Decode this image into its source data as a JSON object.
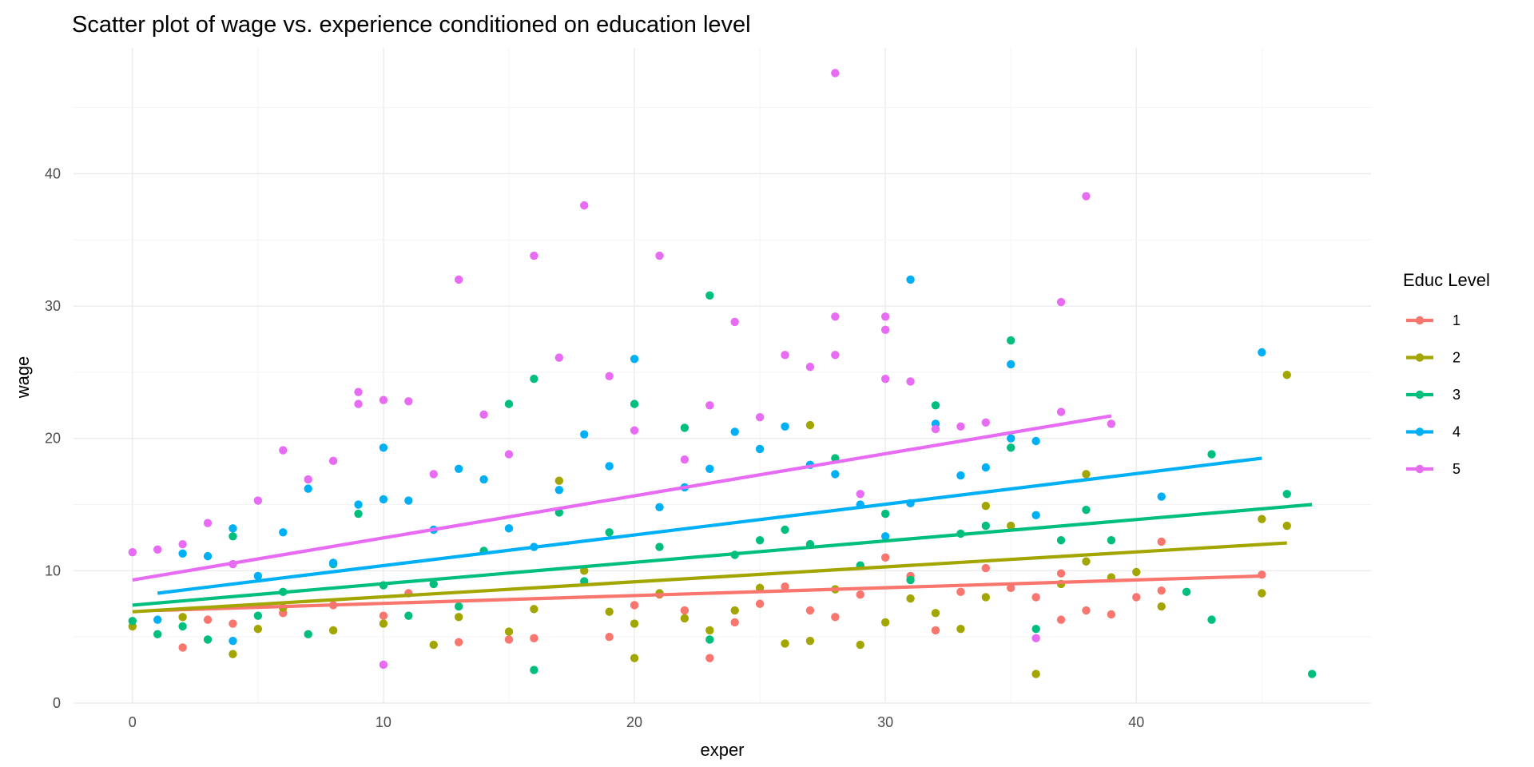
{
  "chart_data": {
    "type": "scatter",
    "title": "Scatter plot of wage vs. experience conditioned on education level",
    "xlabel": "exper",
    "ylabel": "wage",
    "xlim": [
      -2.35,
      49.35
    ],
    "ylim": [
      0,
      49.5
    ],
    "x_ticks": [
      0,
      10,
      20,
      30,
      40
    ],
    "y_ticks": [
      0,
      10,
      20,
      30,
      40
    ],
    "grid": true,
    "legend": {
      "title": "Educ Level",
      "position": "right"
    },
    "series": [
      {
        "name": "1",
        "color": "#F8766D",
        "fit": {
          "x": [
            1,
            45
          ],
          "y": [
            7.0,
            9.6
          ]
        },
        "points": [
          [
            2,
            4.2
          ],
          [
            3,
            6.3
          ],
          [
            4,
            6.0
          ],
          [
            6,
            6.8
          ],
          [
            8,
            7.4
          ],
          [
            10,
            6.6
          ],
          [
            11,
            8.3
          ],
          [
            13,
            4.6
          ],
          [
            15,
            4.8
          ],
          [
            16,
            4.9
          ],
          [
            19,
            5.0
          ],
          [
            20,
            7.4
          ],
          [
            21,
            8.2
          ],
          [
            22,
            7.0
          ],
          [
            23,
            3.4
          ],
          [
            24,
            6.1
          ],
          [
            25,
            7.5
          ],
          [
            26,
            8.8
          ],
          [
            27,
            7.0
          ],
          [
            28,
            6.5
          ],
          [
            29,
            8.2
          ],
          [
            30,
            11.0
          ],
          [
            31,
            9.6
          ],
          [
            32,
            5.5
          ],
          [
            33,
            8.4
          ],
          [
            34,
            10.2
          ],
          [
            35,
            8.7
          ],
          [
            36,
            8.0
          ],
          [
            37,
            6.3
          ],
          [
            37,
            9.8
          ],
          [
            38,
            7.0
          ],
          [
            39,
            6.7
          ],
          [
            40,
            8.0
          ],
          [
            41,
            12.2
          ],
          [
            41,
            8.5
          ],
          [
            45,
            9.7
          ]
        ]
      },
      {
        "name": "2",
        "color": "#A3A500",
        "fit": {
          "x": [
            0,
            46
          ],
          "y": [
            6.9,
            12.1
          ]
        },
        "points": [
          [
            0,
            5.8
          ],
          [
            2,
            6.5
          ],
          [
            4,
            3.7
          ],
          [
            5,
            5.6
          ],
          [
            6,
            7.2
          ],
          [
            8,
            5.5
          ],
          [
            10,
            6.0
          ],
          [
            12,
            4.4
          ],
          [
            13,
            6.5
          ],
          [
            15,
            5.4
          ],
          [
            16,
            7.1
          ],
          [
            17,
            16.8
          ],
          [
            18,
            10.0
          ],
          [
            19,
            6.9
          ],
          [
            20,
            3.4
          ],
          [
            20,
            6.0
          ],
          [
            21,
            8.3
          ],
          [
            22,
            6.4
          ],
          [
            23,
            5.5
          ],
          [
            24,
            7.0
          ],
          [
            25,
            8.7
          ],
          [
            26,
            4.5
          ],
          [
            27,
            4.7
          ],
          [
            27,
            21.0
          ],
          [
            28,
            8.6
          ],
          [
            29,
            4.4
          ],
          [
            30,
            6.1
          ],
          [
            31,
            7.9
          ],
          [
            32,
            6.8
          ],
          [
            33,
            5.6
          ],
          [
            34,
            8.0
          ],
          [
            34,
            14.9
          ],
          [
            35,
            13.4
          ],
          [
            36,
            2.2
          ],
          [
            37,
            9.0
          ],
          [
            38,
            17.3
          ],
          [
            38,
            10.7
          ],
          [
            39,
            9.5
          ],
          [
            40,
            9.9
          ],
          [
            41,
            7.3
          ],
          [
            45,
            8.3
          ],
          [
            45,
            13.9
          ],
          [
            46,
            24.8
          ],
          [
            46,
            13.4
          ]
        ]
      },
      {
        "name": "3",
        "color": "#00BF7D",
        "fit": {
          "x": [
            0,
            47
          ],
          "y": [
            7.4,
            15.0
          ]
        },
        "points": [
          [
            0,
            6.2
          ],
          [
            1,
            5.2
          ],
          [
            2,
            5.8
          ],
          [
            3,
            4.8
          ],
          [
            4,
            12.6
          ],
          [
            5,
            6.6
          ],
          [
            6,
            8.4
          ],
          [
            7,
            5.2
          ],
          [
            8,
            10.5
          ],
          [
            9,
            14.3
          ],
          [
            10,
            8.9
          ],
          [
            11,
            6.6
          ],
          [
            12,
            9.0
          ],
          [
            13,
            7.3
          ],
          [
            14,
            11.5
          ],
          [
            15,
            22.6
          ],
          [
            16,
            24.5
          ],
          [
            16,
            2.5
          ],
          [
            17,
            14.4
          ],
          [
            18,
            9.2
          ],
          [
            19,
            12.9
          ],
          [
            20,
            22.6
          ],
          [
            21,
            11.8
          ],
          [
            22,
            20.8
          ],
          [
            23,
            30.8
          ],
          [
            23,
            4.8
          ],
          [
            24,
            11.2
          ],
          [
            25,
            12.3
          ],
          [
            26,
            13.1
          ],
          [
            27,
            12.0
          ],
          [
            28,
            18.5
          ],
          [
            29,
            10.4
          ],
          [
            30,
            14.3
          ],
          [
            31,
            9.3
          ],
          [
            32,
            22.5
          ],
          [
            33,
            12.8
          ],
          [
            34,
            13.4
          ],
          [
            35,
            27.4
          ],
          [
            35,
            19.3
          ],
          [
            36,
            5.6
          ],
          [
            37,
            12.3
          ],
          [
            38,
            14.6
          ],
          [
            39,
            12.3
          ],
          [
            42,
            8.4
          ],
          [
            43,
            18.8
          ],
          [
            43,
            6.3
          ],
          [
            46,
            15.8
          ],
          [
            47,
            2.2
          ]
        ]
      },
      {
        "name": "4",
        "color": "#00B0F6",
        "fit": {
          "x": [
            1,
            45
          ],
          "y": [
            8.3,
            18.5
          ]
        },
        "points": [
          [
            1,
            6.3
          ],
          [
            2,
            11.3
          ],
          [
            3,
            11.1
          ],
          [
            4,
            13.2
          ],
          [
            4,
            4.7
          ],
          [
            5,
            9.6
          ],
          [
            6,
            12.9
          ],
          [
            7,
            16.2
          ],
          [
            8,
            10.6
          ],
          [
            9,
            15.0
          ],
          [
            10,
            19.3
          ],
          [
            10,
            15.4
          ],
          [
            11,
            15.3
          ],
          [
            12,
            13.1
          ],
          [
            13,
            17.7
          ],
          [
            14,
            16.9
          ],
          [
            15,
            13.2
          ],
          [
            16,
            11.8
          ],
          [
            17,
            16.1
          ],
          [
            18,
            20.3
          ],
          [
            19,
            17.9
          ],
          [
            20,
            26.0
          ],
          [
            21,
            14.8
          ],
          [
            22,
            16.3
          ],
          [
            23,
            17.7
          ],
          [
            24,
            20.5
          ],
          [
            25,
            19.2
          ],
          [
            26,
            20.9
          ],
          [
            27,
            18.0
          ],
          [
            28,
            17.3
          ],
          [
            29,
            15.0
          ],
          [
            30,
            12.6
          ],
          [
            31,
            32.0
          ],
          [
            31,
            15.1
          ],
          [
            32,
            21.1
          ],
          [
            33,
            17.2
          ],
          [
            34,
            17.8
          ],
          [
            35,
            25.6
          ],
          [
            35,
            20.0
          ],
          [
            36,
            19.8
          ],
          [
            36,
            14.2
          ],
          [
            41,
            15.6
          ],
          [
            45,
            26.5
          ]
        ]
      },
      {
        "name": "5",
        "color": "#E76BF3",
        "fit": {
          "x": [
            0,
            39
          ],
          "y": [
            9.3,
            21.7
          ]
        },
        "points": [
          [
            0,
            11.4
          ],
          [
            1,
            11.6
          ],
          [
            2,
            12.0
          ],
          [
            3,
            13.6
          ],
          [
            4,
            10.5
          ],
          [
            5,
            15.3
          ],
          [
            6,
            19.1
          ],
          [
            7,
            16.9
          ],
          [
            8,
            18.3
          ],
          [
            9,
            23.5
          ],
          [
            9,
            22.6
          ],
          [
            10,
            22.9
          ],
          [
            10,
            2.9
          ],
          [
            11,
            22.8
          ],
          [
            12,
            17.3
          ],
          [
            13,
            32.0
          ],
          [
            14,
            21.8
          ],
          [
            15,
            18.8
          ],
          [
            16,
            33.8
          ],
          [
            17,
            26.1
          ],
          [
            18,
            37.6
          ],
          [
            19,
            24.7
          ],
          [
            20,
            20.6
          ],
          [
            21,
            33.8
          ],
          [
            22,
            18.4
          ],
          [
            23,
            22.5
          ],
          [
            24,
            28.8
          ],
          [
            25,
            21.6
          ],
          [
            26,
            26.3
          ],
          [
            27,
            25.4
          ],
          [
            28,
            47.6
          ],
          [
            28,
            29.2
          ],
          [
            28,
            26.3
          ],
          [
            29,
            15.8
          ],
          [
            30,
            29.2
          ],
          [
            30,
            28.2
          ],
          [
            30,
            24.5
          ],
          [
            31,
            24.3
          ],
          [
            32,
            20.7
          ],
          [
            33,
            20.9
          ],
          [
            34,
            21.2
          ],
          [
            36,
            4.9
          ],
          [
            37,
            30.3
          ],
          [
            37,
            22.0
          ],
          [
            38,
            38.3
          ],
          [
            39,
            21.1
          ]
        ]
      }
    ]
  }
}
